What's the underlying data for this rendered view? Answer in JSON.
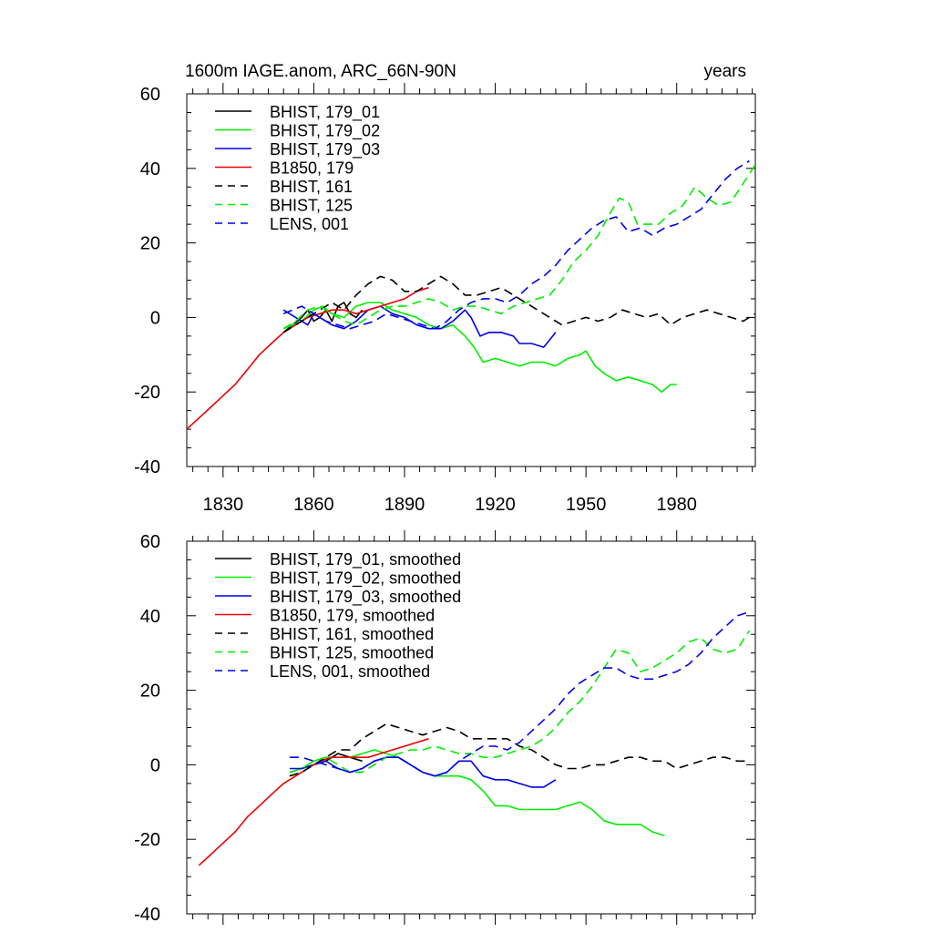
{
  "figure_title_left": "1600m IAGE.anom, ARC_66N-90N",
  "figure_title_right": "years",
  "chart_data": [
    {
      "type": "line",
      "panel": "top",
      "title": "1600m IAGE.anom, ARC_66N-90N",
      "ylabel_right": "years",
      "xlim": [
        1818,
        2006
      ],
      "ylim": [
        -40,
        60
      ],
      "xticks": [
        1830,
        1860,
        1890,
        1920,
        1950,
        1980
      ],
      "xtick_labels": [
        "1830",
        "1860",
        "1890",
        "1920",
        "1950",
        "1980"
      ],
      "yticks": [
        -40,
        -20,
        0,
        20,
        40,
        60
      ],
      "ytick_labels": [
        "-40",
        "-20",
        "0",
        "20",
        "40",
        "60"
      ],
      "legend_position": "top-left",
      "series": [
        {
          "name": "BHIST, 179_01",
          "color": "#000000",
          "dash": "solid",
          "x": [
            1850,
            1853,
            1856,
            1858,
            1860,
            1862,
            1864,
            1866,
            1868,
            1870,
            1872,
            1874,
            1876
          ],
          "y": [
            -4,
            -2,
            0,
            2,
            -1,
            0,
            2,
            -1,
            3,
            4,
            1,
            0,
            2
          ]
        },
        {
          "name": "BHIST, 179_02",
          "color": "#00ee00",
          "dash": "solid",
          "x": [
            1850,
            1853,
            1856,
            1860,
            1863,
            1866,
            1870,
            1874,
            1878,
            1882,
            1886,
            1890,
            1894,
            1898,
            1902,
            1906,
            1910,
            1913,
            1916,
            1920,
            1924,
            1928,
            1932,
            1936,
            1940,
            1944,
            1948,
            1950,
            1953,
            1956,
            1960,
            1964,
            1968,
            1972,
            1975,
            1978,
            1980
          ],
          "y": [
            -3,
            -2,
            -1,
            2,
            3,
            1,
            0,
            3,
            4,
            4,
            2,
            1,
            0,
            -2,
            -3,
            -2,
            -5,
            -8,
            -12,
            -11,
            -12,
            -13,
            -12,
            -12,
            -13,
            -11,
            -10,
            -9,
            -13,
            -15,
            -17,
            -16,
            -17,
            -18,
            -20,
            -18,
            -18
          ]
        },
        {
          "name": "BHIST, 179_03",
          "color": "#0000ee",
          "dash": "solid",
          "x": [
            1850,
            1854,
            1858,
            1860,
            1862,
            1866,
            1870,
            1874,
            1878,
            1882,
            1886,
            1890,
            1894,
            1898,
            1902,
            1906,
            1910,
            1912,
            1915,
            1918,
            1922,
            1926,
            1928,
            1932,
            1936,
            1940
          ],
          "y": [
            2,
            0,
            -2,
            1,
            0,
            -2,
            -3,
            -1,
            2,
            3,
            1,
            0,
            -2,
            -3,
            -3,
            -1,
            2,
            0,
            -5,
            -4,
            -4,
            -5,
            -7,
            -7,
            -8,
            -4
          ]
        },
        {
          "name": "B1850, 179",
          "color": "#ee0000",
          "dash": "solid",
          "x": [
            1818,
            1822,
            1826,
            1830,
            1834,
            1838,
            1842,
            1846,
            1850,
            1854,
            1858,
            1862,
            1866,
            1870,
            1874,
            1878,
            1882,
            1886,
            1890,
            1894,
            1898
          ],
          "y": [
            -30,
            -27,
            -24,
            -21,
            -18,
            -14,
            -10,
            -7,
            -4,
            -2,
            0,
            1,
            2,
            2,
            1,
            2,
            3,
            4,
            5,
            7,
            8
          ]
        },
        {
          "name": "BHIST, 161",
          "color": "#000000",
          "dash": "dashed",
          "x": [
            1850,
            1854,
            1858,
            1862,
            1866,
            1870,
            1874,
            1878,
            1882,
            1886,
            1890,
            1894,
            1898,
            1902,
            1906,
            1910,
            1914,
            1918,
            1922,
            1926,
            1930,
            1934,
            1938,
            1942,
            1946,
            1950,
            1954,
            1958,
            1962,
            1966,
            1970,
            1974,
            1978,
            1982,
            1986,
            1990,
            1994,
            1998,
            2002,
            2006
          ],
          "y": [
            -4,
            -2,
            0,
            2,
            4,
            2,
            6,
            9,
            11,
            10,
            7,
            7,
            9,
            11,
            9,
            6,
            6,
            7,
            8,
            6,
            4,
            2,
            0,
            -2,
            -1,
            0,
            -1,
            0,
            2,
            1,
            0,
            1,
            -2,
            0,
            1,
            2,
            1,
            0,
            -1,
            1
          ]
        },
        {
          "name": "BHIST, 125",
          "color": "#00ee00",
          "dash": "dashed",
          "x": [
            1850,
            1854,
            1858,
            1862,
            1866,
            1870,
            1874,
            1878,
            1882,
            1886,
            1890,
            1894,
            1898,
            1902,
            1906,
            1910,
            1914,
            1918,
            1922,
            1926,
            1930,
            1934,
            1938,
            1942,
            1946,
            1950,
            1954,
            1958,
            1961,
            1964,
            1967,
            1970,
            1974,
            1978,
            1982,
            1986,
            1990,
            1994,
            1998,
            2002,
            2006
          ],
          "y": [
            -3,
            -1,
            2,
            3,
            1,
            -1,
            -2,
            0,
            2,
            3,
            3,
            4,
            5,
            4,
            2,
            3,
            3,
            2,
            1,
            3,
            4,
            5,
            6,
            10,
            15,
            18,
            22,
            28,
            32,
            31,
            25,
            25,
            25,
            28,
            30,
            35,
            32,
            30,
            31,
            36,
            41
          ]
        },
        {
          "name": "LENS, 001",
          "color": "#0000ee",
          "dash": "dashed",
          "x": [
            1850,
            1853,
            1856,
            1860,
            1864,
            1868,
            1872,
            1876,
            1880,
            1884,
            1888,
            1892,
            1896,
            1900,
            1904,
            1908,
            1912,
            1916,
            1920,
            1924,
            1928,
            1932,
            1936,
            1940,
            1944,
            1948,
            1952,
            1956,
            1960,
            1964,
            1968,
            1972,
            1976,
            1980,
            1984,
            1988,
            1992,
            1996,
            2000,
            2004
          ],
          "y": [
            1,
            2,
            3,
            1,
            -1,
            -2,
            -3,
            -2,
            -1,
            1,
            0,
            -1,
            -2,
            -3,
            -1,
            2,
            4,
            5,
            5,
            4,
            6,
            9,
            11,
            14,
            18,
            21,
            24,
            26,
            27,
            23,
            24,
            22,
            24,
            25,
            27,
            29,
            33,
            37,
            40,
            42
          ]
        }
      ]
    },
    {
      "type": "line",
      "panel": "bottom",
      "xlim": [
        1818,
        2006
      ],
      "ylim": [
        -40,
        60
      ],
      "xticks": [
        1830,
        1860,
        1890,
        1920,
        1950,
        1980
      ],
      "yticks": [
        -40,
        -20,
        0,
        20,
        40,
        60
      ],
      "ytick_labels": [
        "-40",
        "-20",
        "0",
        "20",
        "40",
        "60"
      ],
      "legend_position": "top-left",
      "series": [
        {
          "name": "BHIST, 179_01, smoothed",
          "color": "#000000",
          "dash": "solid",
          "x": [
            1852,
            1856,
            1860,
            1864,
            1868,
            1872,
            1876
          ],
          "y": [
            -2,
            -1,
            0,
            1,
            3,
            2,
            1
          ]
        },
        {
          "name": "BHIST, 179_02, smoothed",
          "color": "#00ee00",
          "dash": "solid",
          "x": [
            1852,
            1856,
            1860,
            1864,
            1868,
            1872,
            1876,
            1880,
            1884,
            1888,
            1892,
            1896,
            1900,
            1904,
            1908,
            1912,
            1916,
            1920,
            1924,
            1928,
            1932,
            1936,
            1940,
            1944,
            1948,
            1952,
            1956,
            1960,
            1964,
            1968,
            1972,
            1976
          ],
          "y": [
            -2,
            -1,
            1,
            2,
            2,
            2,
            3,
            4,
            3,
            2,
            0,
            -2,
            -3,
            -3,
            -3,
            -4,
            -7,
            -11,
            -11,
            -12,
            -12,
            -12,
            -12,
            -11,
            -10,
            -12,
            -15,
            -16,
            -16,
            -16,
            -18,
            -19
          ]
        },
        {
          "name": "BHIST, 179_03, smoothed",
          "color": "#0000ee",
          "dash": "solid",
          "x": [
            1852,
            1856,
            1860,
            1864,
            1868,
            1872,
            1876,
            1880,
            1884,
            1888,
            1892,
            1896,
            1900,
            1904,
            1908,
            1912,
            1916,
            1920,
            1924,
            1928,
            1932,
            1936,
            1940
          ],
          "y": [
            -1,
            -1,
            0,
            1,
            -1,
            -2,
            -1,
            1,
            2,
            2,
            0,
            -2,
            -3,
            -2,
            1,
            1,
            -3,
            -4,
            -4,
            -5,
            -6,
            -6,
            -4
          ]
        },
        {
          "name": "B1850, 179, smoothed",
          "color": "#ee0000",
          "dash": "solid",
          "x": [
            1822,
            1826,
            1830,
            1834,
            1838,
            1842,
            1846,
            1850,
            1854,
            1858,
            1862,
            1866,
            1870,
            1874,
            1878,
            1882,
            1886,
            1890,
            1894,
            1898
          ],
          "y": [
            -27,
            -24,
            -21,
            -18,
            -14,
            -11,
            -8,
            -5,
            -3,
            -1,
            1,
            2,
            2,
            2,
            2,
            3,
            4,
            5,
            6,
            7
          ]
        },
        {
          "name": "BHIST, 161, smoothed",
          "color": "#000000",
          "dash": "dashed",
          "x": [
            1852,
            1856,
            1860,
            1864,
            1868,
            1872,
            1876,
            1880,
            1884,
            1888,
            1892,
            1896,
            1900,
            1904,
            1908,
            1912,
            1916,
            1920,
            1924,
            1928,
            1932,
            1936,
            1940,
            1944,
            1948,
            1952,
            1956,
            1960,
            1964,
            1968,
            1972,
            1976,
            1980,
            1984,
            1988,
            1992,
            1996,
            2000,
            2004
          ],
          "y": [
            -3,
            -2,
            0,
            2,
            4,
            4,
            7,
            9,
            11,
            10,
            9,
            8,
            9,
            10,
            9,
            7,
            7,
            7,
            7,
            5,
            4,
            2,
            0,
            -1,
            -1,
            0,
            0,
            1,
            2,
            2,
            1,
            1,
            -1,
            0,
            1,
            2,
            2,
            1,
            1
          ]
        },
        {
          "name": "BHIST, 125, smoothed",
          "color": "#00ee00",
          "dash": "dashed",
          "x": [
            1852,
            1856,
            1860,
            1864,
            1868,
            1872,
            1876,
            1880,
            1884,
            1888,
            1892,
            1896,
            1900,
            1904,
            1908,
            1912,
            1916,
            1920,
            1924,
            1928,
            1932,
            1936,
            1940,
            1944,
            1948,
            1952,
            1956,
            1960,
            1964,
            1968,
            1972,
            1976,
            1980,
            1984,
            1988,
            1992,
            1996,
            2000,
            2004
          ],
          "y": [
            -2,
            -1,
            1,
            2,
            0,
            -2,
            -2,
            0,
            2,
            3,
            4,
            4,
            5,
            4,
            3,
            3,
            2,
            2,
            3,
            4,
            5,
            7,
            10,
            14,
            17,
            21,
            26,
            31,
            30,
            25,
            26,
            28,
            30,
            33,
            34,
            31,
            30,
            31,
            36
          ]
        },
        {
          "name": "LENS, 001, smoothed",
          "color": "#0000ee",
          "dash": "dashed",
          "x": [
            1852,
            1856,
            1860,
            1864,
            1868,
            1872,
            1876,
            1880,
            1884,
            1888,
            1892,
            1896,
            1900,
            1904,
            1908,
            1912,
            1916,
            1920,
            1924,
            1928,
            1932,
            1936,
            1940,
            1944,
            1948,
            1952,
            1956,
            1960,
            1964,
            1968,
            1972,
            1976,
            1980,
            1984,
            1988,
            1992,
            1996,
            2000,
            2004
          ],
          "y": [
            2,
            2,
            1,
            0,
            -1,
            -2,
            -1,
            1,
            2,
            2,
            0,
            -2,
            -3,
            -2,
            1,
            3,
            5,
            5,
            4,
            6,
            9,
            12,
            15,
            19,
            22,
            24,
            26,
            26,
            24,
            23,
            23,
            24,
            25,
            27,
            30,
            34,
            37,
            40,
            41
          ]
        }
      ]
    }
  ]
}
